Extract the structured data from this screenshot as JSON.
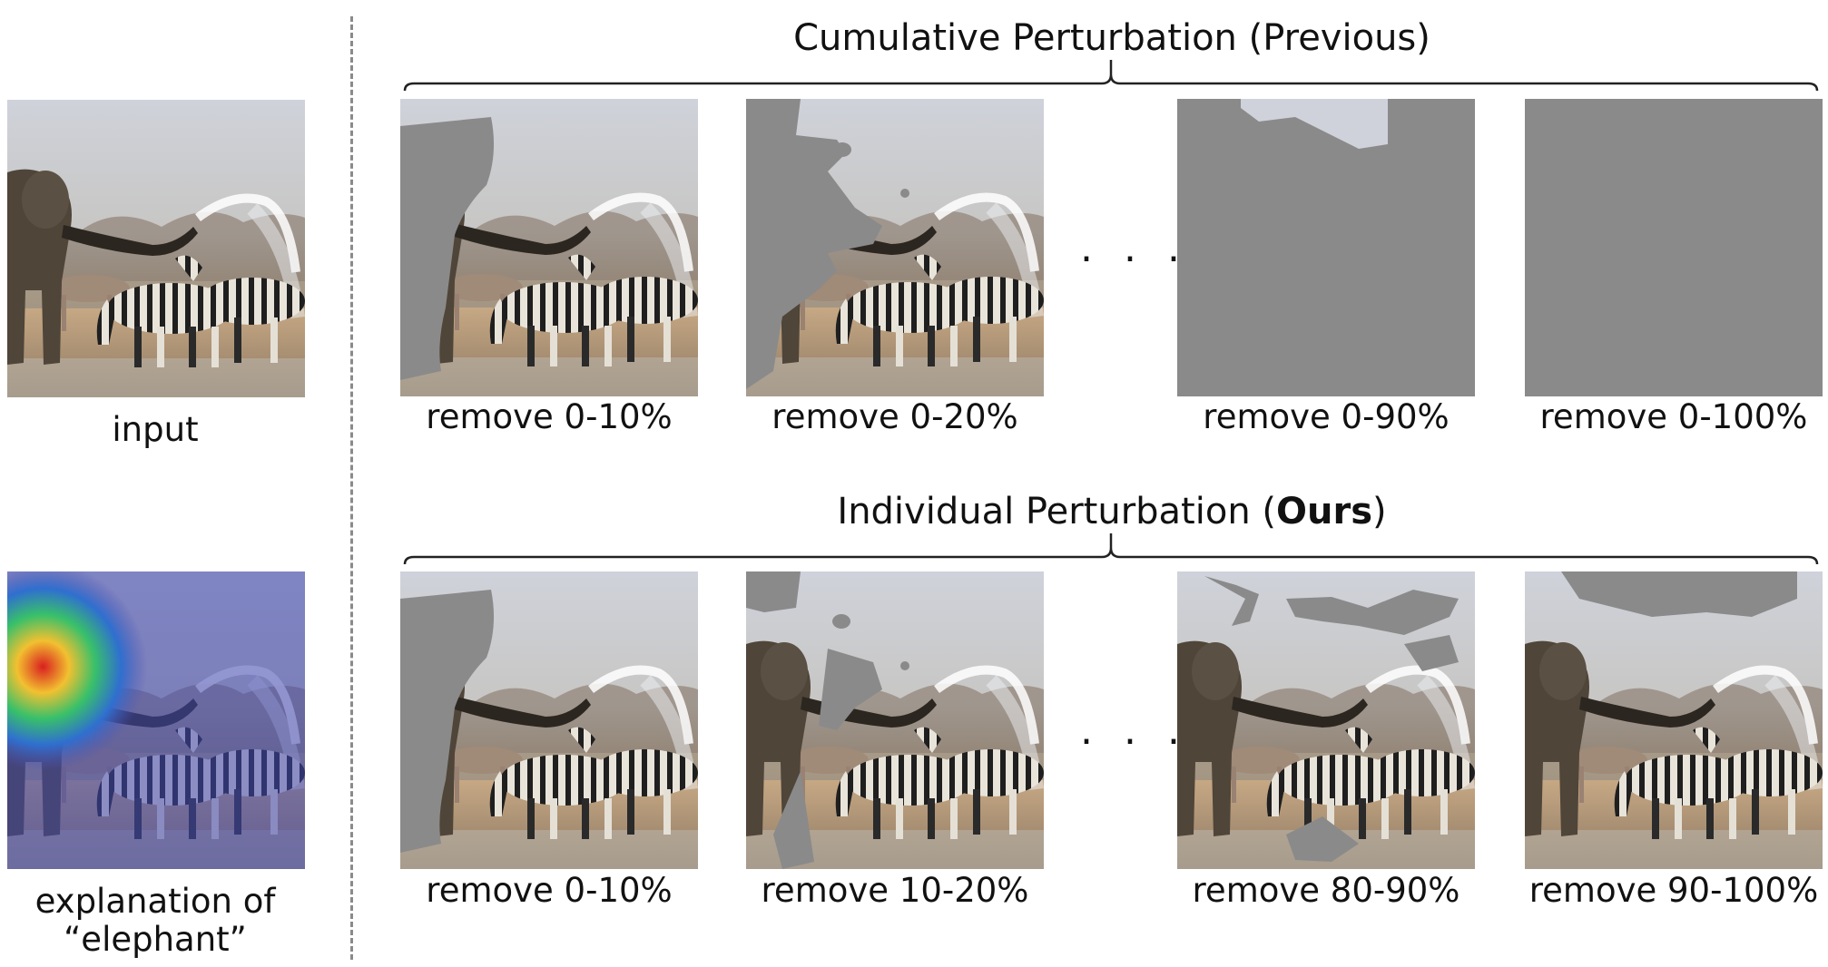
{
  "left": {
    "input_label": "input",
    "explanation_line1": "explanation of",
    "explanation_line2": "“elephant”"
  },
  "top_row": {
    "title": "Cumulative Perturbation (Previous)",
    "captions": [
      "remove 0-10%",
      "remove 0-20%",
      "remove 0-90%",
      "remove 0-100%"
    ],
    "ellipsis": ". . ."
  },
  "bottom_row": {
    "title_prefix": "Individual Perturbation (",
    "title_bold": "Ours",
    "title_suffix": ")",
    "captions": [
      "remove 0-10%",
      "remove 10-20%",
      "remove 80-90%",
      "remove 90-100%"
    ],
    "ellipsis": ". . ."
  },
  "colors": {
    "mask_gray": "#8a8a8a",
    "sky": "#cdd0d8",
    "ground": "#b59572",
    "heatmap_base": "#5a5fb3"
  }
}
